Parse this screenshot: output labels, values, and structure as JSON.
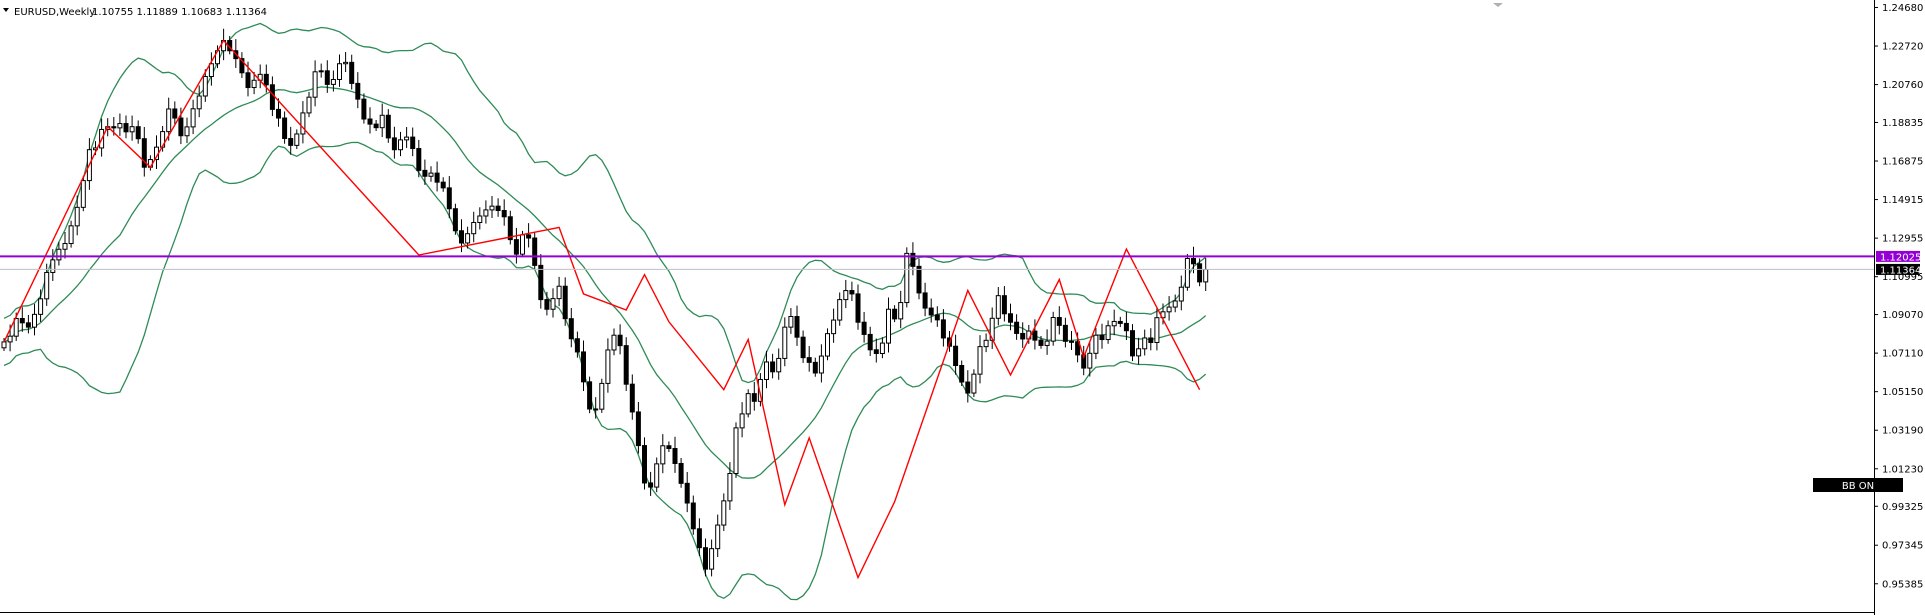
{
  "header": {
    "symbol_timeframe": "EURUSD,Weekly",
    "ohlc": "1.10755 1.11889 1.10683 1.11364"
  },
  "badge": {
    "label": "BB ON"
  },
  "price_tags": {
    "hline_price": "1.12025",
    "current_price": "1.11364"
  },
  "colors": {
    "candle": "#000000",
    "bollinger": "#2e8b57",
    "zigzag": "#ff0000",
    "hline": "#9400d3",
    "current_tag_bg": "#000000",
    "badge_bg": "#000000"
  },
  "chart_data": {
    "type": "candlestick",
    "symbol": "EURUSD",
    "timeframe": "Weekly",
    "ylim": [
      0.9395,
      1.2506
    ],
    "y_ticks": [
      "1.24680",
      "1.22720",
      "1.20760",
      "1.18835",
      "1.16875",
      "1.14915",
      "1.12955",
      "1.10995",
      "1.09070",
      "1.07110",
      "1.05150",
      "1.03190",
      "1.01230",
      "0.99325",
      "0.97345",
      "0.95385"
    ],
    "horizontal_line": 1.12025,
    "current_price": 1.11364,
    "grid": false,
    "closes": [
      1.0768,
      1.0797,
      1.0887,
      1.0865,
      1.0843,
      1.0908,
      1.0987,
      1.1121,
      1.1185,
      1.1239,
      1.1268,
      1.1358,
      1.1452,
      1.1588,
      1.1745,
      1.1754,
      1.1848,
      1.1862,
      1.1856,
      1.1878,
      1.1836,
      1.1862,
      1.1801,
      1.1656,
      1.1695,
      1.1758,
      1.1837,
      1.1952,
      1.1906,
      1.1816,
      1.1861,
      1.1953,
      1.2018,
      1.2117,
      1.2182,
      1.2248,
      1.23,
      1.2248,
      1.2208,
      1.2136,
      1.2061,
      1.2098,
      1.2128,
      1.2075,
      1.195,
      1.1906,
      1.1802,
      1.1767,
      1.1825,
      1.1932,
      1.2012,
      1.2141,
      1.2146,
      1.2077,
      1.2102,
      1.2182,
      1.2189,
      1.2082,
      1.2002,
      1.1901,
      1.1875,
      1.1857,
      1.192,
      1.1805,
      1.1745,
      1.1795,
      1.1809,
      1.1751,
      1.164,
      1.161,
      1.1626,
      1.158,
      1.1551,
      1.1445,
      1.1333,
      1.1271,
      1.1318,
      1.1375,
      1.1408,
      1.1439,
      1.1458,
      1.1436,
      1.1404,
      1.1288,
      1.1214,
      1.1312,
      1.1296,
      1.1157,
      1.0983,
      1.0934,
      1.0988,
      1.1051,
      1.0886,
      1.0784,
      1.0717,
      1.0565,
      1.0427,
      1.0426,
      1.0557,
      1.0727,
      1.0802,
      1.0749,
      1.0553,
      1.0412,
      1.0241,
      1.0051,
      1.003,
      1.0148,
      1.024,
      1.0226,
      1.015,
      1.0049,
      0.9949,
      0.9818,
      0.9722,
      0.9613,
      0.9717,
      0.9837,
      0.996,
      1.0099,
      1.0331,
      1.0402,
      1.0505,
      1.0466,
      1.0577,
      1.0666,
      1.0616,
      1.0684,
      1.0843,
      1.0897,
      1.0792,
      1.0688,
      1.0664,
      1.061,
      1.0696,
      1.081,
      1.0879,
      1.0983,
      1.1029,
      1.1012,
      1.0868,
      1.0806,
      1.0728,
      1.0709,
      1.0762,
      1.0934,
      1.0885,
      1.0968,
      1.1218,
      1.1152,
      1.1017,
      1.094,
      1.0905,
      1.088,
      1.0788,
      1.0746,
      1.0648,
      1.0564,
      1.0508,
      1.0604,
      1.0744,
      1.0776,
      1.0888,
      1.1003,
      1.0911,
      1.0868,
      1.0811,
      1.0783,
      1.0823,
      1.0777,
      1.075,
      1.0772,
      1.0892,
      1.0852,
      1.0771,
      1.0769,
      1.0702,
      1.0635,
      1.071,
      1.0802,
      1.078,
      1.085,
      1.0872,
      1.0862,
      1.0825,
      1.0697,
      1.0733,
      1.0788,
      1.0765,
      1.0891,
      1.0921,
      1.0945,
      1.0976,
      1.1046,
      1.1192,
      1.1165,
      1.1073,
      1.1136
    ],
    "series": [
      {
        "name": "Bollinger Bands",
        "type": "line"
      },
      {
        "name": "ZigZag",
        "type": "line",
        "points": [
          [
            0,
            1.0768
          ],
          [
            17,
            1.1862
          ],
          [
            24,
            1.1656
          ],
          [
            36,
            1.23
          ],
          [
            68,
            1.121
          ],
          [
            91,
            1.135
          ],
          [
            95,
            1.1012
          ],
          [
            102,
            1.093
          ],
          [
            105,
            1.111
          ],
          [
            109,
            1.087
          ],
          [
            118,
            1.0525
          ],
          [
            122,
            1.078
          ],
          [
            128,
            0.994
          ],
          [
            132,
            1.028
          ],
          [
            140,
            0.957
          ],
          [
            146,
            0.9955
          ],
          [
            158,
            1.103
          ],
          [
            165,
            1.06
          ],
          [
            173,
            1.1085
          ],
          [
            177,
            1.069
          ],
          [
            184,
            1.124
          ],
          [
            196,
            1.0525
          ]
        ]
      }
    ]
  }
}
